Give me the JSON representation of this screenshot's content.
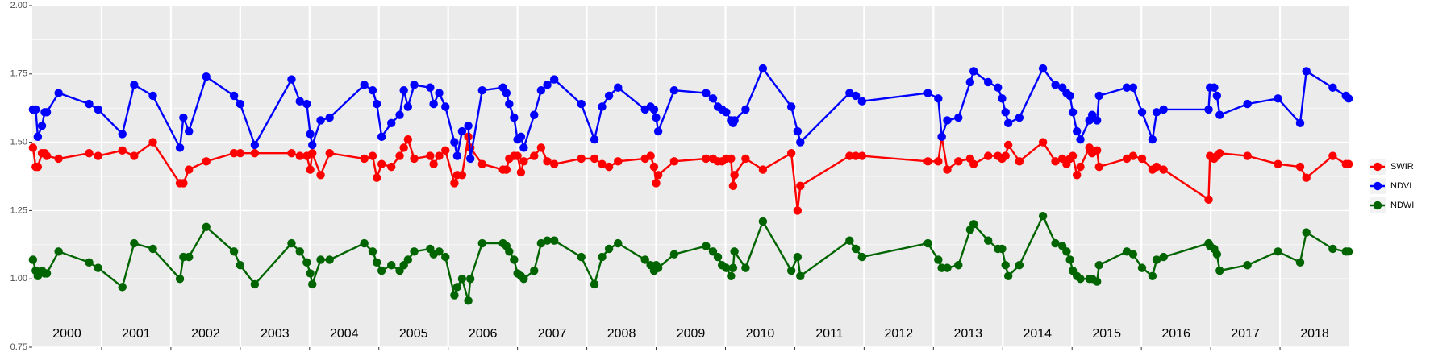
{
  "chart_data": {
    "type": "line",
    "x": [
      2000.01,
      2000.05,
      2000.08,
      2000.14,
      2000.18,
      2000.21,
      2000.38,
      2000.82,
      2000.95,
      2001.3,
      2001.47,
      2001.74,
      2002.13,
      2002.18,
      2002.26,
      2002.51,
      2002.91,
      2003.0,
      2003.21,
      2003.74,
      2003.86,
      2003.96,
      2004.01,
      2004.04,
      2004.16,
      2004.29,
      2004.79,
      2004.91,
      2004.97,
      2005.04,
      2005.18,
      2005.3,
      2005.36,
      2005.42,
      2005.51,
      2005.74,
      2005.79,
      2005.87,
      2005.96,
      2006.09,
      2006.13,
      2006.2,
      2006.29,
      2006.32,
      2006.49,
      2006.79,
      2006.84,
      2006.88,
      2006.95,
      2007.0,
      2007.05,
      2007.09,
      2007.24,
      2007.34,
      2007.43,
      2007.53,
      2007.92,
      2008.11,
      2008.22,
      2008.32,
      2008.45,
      2008.84,
      2008.92,
      2008.97,
      2009.0,
      2009.03,
      2009.26,
      2009.72,
      2009.82,
      2009.89,
      2009.95,
      2010.01,
      2010.08,
      2010.11,
      2010.13,
      2010.29,
      2010.54,
      2010.95,
      2011.04,
      2011.08,
      2011.79,
      2011.88,
      2011.97,
      2012.92,
      2013.07,
      2013.12,
      2013.2,
      2013.36,
      2013.53,
      2013.58,
      2013.79,
      2013.93,
      2013.99,
      2014.04,
      2014.08,
      2014.24,
      2014.58,
      2014.76,
      2014.86,
      2014.92,
      2014.97,
      2015.01,
      2015.07,
      2015.12,
      2015.25,
      2015.29,
      2015.36,
      2015.39,
      2015.79,
      2015.88,
      2016.01,
      2016.16,
      2016.22,
      2016.32,
      2016.97,
      2016.99,
      2017.05,
      2017.09,
      2017.13,
      2017.53,
      2017.97,
      2018.29,
      2018.38,
      2018.76,
      2018.95,
      2018.99
    ],
    "series": [
      {
        "name": "SWIR",
        "color": "#ff0000",
        "values": [
          1.48,
          1.41,
          1.41,
          1.46,
          1.46,
          1.45,
          1.44,
          1.46,
          1.45,
          1.47,
          1.45,
          1.5,
          1.35,
          1.35,
          1.4,
          1.43,
          1.46,
          1.46,
          1.46,
          1.46,
          1.45,
          1.45,
          1.4,
          1.46,
          1.38,
          1.46,
          1.44,
          1.45,
          1.37,
          1.42,
          1.41,
          1.45,
          1.48,
          1.51,
          1.44,
          1.45,
          1.42,
          1.45,
          1.47,
          1.35,
          1.38,
          1.38,
          1.52,
          1.48,
          1.42,
          1.4,
          1.4,
          1.44,
          1.45,
          1.45,
          1.39,
          1.43,
          1.45,
          1.48,
          1.43,
          1.42,
          1.44,
          1.44,
          1.42,
          1.41,
          1.43,
          1.44,
          1.45,
          1.41,
          1.35,
          1.38,
          1.43,
          1.44,
          1.44,
          1.43,
          1.43,
          1.44,
          1.44,
          1.34,
          1.38,
          1.44,
          1.4,
          1.46,
          1.25,
          1.34,
          1.45,
          1.45,
          1.45,
          1.43,
          1.43,
          1.52,
          1.4,
          1.43,
          1.44,
          1.42,
          1.45,
          1.45,
          1.44,
          1.45,
          1.49,
          1.43,
          1.5,
          1.43,
          1.44,
          1.42,
          1.44,
          1.45,
          1.38,
          1.41,
          1.48,
          1.46,
          1.47,
          1.41,
          1.44,
          1.45,
          1.44,
          1.4,
          1.41,
          1.4,
          1.29,
          1.45,
          1.44,
          1.45,
          1.46,
          1.45,
          1.42,
          1.41,
          1.37,
          1.45,
          1.42,
          1.42
        ]
      },
      {
        "name": "NDVI",
        "color": "#0000ff",
        "values": [
          1.62,
          1.62,
          1.52,
          1.56,
          1.61,
          1.61,
          1.68,
          1.64,
          1.62,
          1.53,
          1.71,
          1.67,
          1.48,
          1.59,
          1.54,
          1.74,
          1.67,
          1.64,
          1.49,
          1.73,
          1.65,
          1.64,
          1.53,
          1.49,
          1.58,
          1.59,
          1.71,
          1.69,
          1.64,
          1.52,
          1.57,
          1.6,
          1.69,
          1.63,
          1.71,
          1.7,
          1.64,
          1.68,
          1.63,
          1.5,
          1.45,
          1.54,
          1.56,
          1.44,
          1.69,
          1.7,
          1.68,
          1.64,
          1.59,
          1.51,
          1.52,
          1.48,
          1.6,
          1.69,
          1.71,
          1.73,
          1.64,
          1.51,
          1.63,
          1.67,
          1.7,
          1.62,
          1.63,
          1.62,
          1.59,
          1.54,
          1.69,
          1.68,
          1.66,
          1.63,
          1.62,
          1.61,
          1.58,
          1.57,
          1.58,
          1.62,
          1.77,
          1.63,
          1.54,
          1.5,
          1.68,
          1.67,
          1.65,
          1.68,
          1.66,
          1.52,
          1.58,
          1.59,
          1.72,
          1.76,
          1.72,
          1.7,
          1.66,
          1.61,
          1.57,
          1.59,
          1.77,
          1.71,
          1.7,
          1.68,
          1.67,
          1.61,
          1.54,
          1.51,
          1.58,
          1.6,
          1.58,
          1.67,
          1.7,
          1.7,
          1.61,
          1.51,
          1.61,
          1.62,
          1.62,
          1.7,
          1.7,
          1.67,
          1.6,
          1.64,
          1.66,
          1.57,
          1.76,
          1.7,
          1.67,
          1.66
        ]
      },
      {
        "name": "NDWI",
        "color": "#006400",
        "values": [
          1.07,
          1.03,
          1.01,
          1.03,
          1.02,
          1.02,
          1.1,
          1.06,
          1.04,
          0.97,
          1.13,
          1.11,
          1.0,
          1.08,
          1.08,
          1.19,
          1.1,
          1.05,
          0.98,
          1.13,
          1.1,
          1.06,
          1.02,
          0.98,
          1.07,
          1.07,
          1.13,
          1.1,
          1.06,
          1.03,
          1.05,
          1.03,
          1.05,
          1.07,
          1.1,
          1.11,
          1.09,
          1.1,
          1.08,
          0.94,
          0.97,
          1.0,
          0.92,
          1.0,
          1.13,
          1.13,
          1.12,
          1.1,
          1.07,
          1.02,
          1.01,
          1.0,
          1.03,
          1.13,
          1.14,
          1.14,
          1.08,
          0.98,
          1.08,
          1.11,
          1.13,
          1.07,
          1.05,
          1.03,
          1.05,
          1.04,
          1.09,
          1.12,
          1.1,
          1.08,
          1.05,
          1.04,
          1.01,
          1.04,
          1.1,
          1.04,
          1.21,
          1.03,
          1.08,
          1.01,
          1.14,
          1.11,
          1.08,
          1.13,
          1.07,
          1.04,
          1.04,
          1.05,
          1.18,
          1.2,
          1.14,
          1.11,
          1.11,
          1.05,
          1.01,
          1.05,
          1.23,
          1.13,
          1.12,
          1.1,
          1.07,
          1.03,
          1.01,
          1.0,
          1.0,
          1.0,
          0.99,
          1.05,
          1.1,
          1.09,
          1.04,
          1.01,
          1.07,
          1.08,
          1.13,
          1.12,
          1.11,
          1.09,
          1.03,
          1.05,
          1.1,
          1.06,
          1.17,
          1.11,
          1.1,
          1.1
        ]
      }
    ],
    "xlim": [
      2000,
      2019
    ],
    "x_boundaries": [
      2001,
      2002,
      2003,
      2004,
      2005,
      2006,
      2007,
      2008,
      2009,
      2010,
      2011,
      2012,
      2013,
      2014,
      2015,
      2016,
      2017,
      2018
    ],
    "year_labels": [
      {
        "value": 2000.5,
        "label": "2000"
      },
      {
        "value": 2001.5,
        "label": "2001"
      },
      {
        "value": 2002.5,
        "label": "2002"
      },
      {
        "value": 2003.5,
        "label": "2003"
      },
      {
        "value": 2004.5,
        "label": "2004"
      },
      {
        "value": 2005.5,
        "label": "2005"
      },
      {
        "value": 2006.5,
        "label": "2006"
      },
      {
        "value": 2007.5,
        "label": "2007"
      },
      {
        "value": 2008.5,
        "label": "2008"
      },
      {
        "value": 2009.5,
        "label": "2009"
      },
      {
        "value": 2010.5,
        "label": "2010"
      },
      {
        "value": 2011.5,
        "label": "2011"
      },
      {
        "value": 2012.5,
        "label": "2012"
      },
      {
        "value": 2013.5,
        "label": "2013"
      },
      {
        "value": 2014.5,
        "label": "2014"
      },
      {
        "value": 2015.5,
        "label": "2015"
      },
      {
        "value": 2016.5,
        "label": "2016"
      },
      {
        "value": 2017.5,
        "label": "2017"
      },
      {
        "value": 2018.5,
        "label": "2018"
      }
    ],
    "ylim": [
      0.75,
      2.0
    ],
    "yticks": [
      {
        "value": 0.75,
        "label": "0.75"
      },
      {
        "value": 1,
        "label": "1.00"
      },
      1.25,
      {
        "value": 1.5,
        "label": "1.50"
      },
      1.75,
      {
        "value": 2,
        "label": "2.00"
      }
    ],
    "grid": true,
    "legend_position": "right"
  }
}
